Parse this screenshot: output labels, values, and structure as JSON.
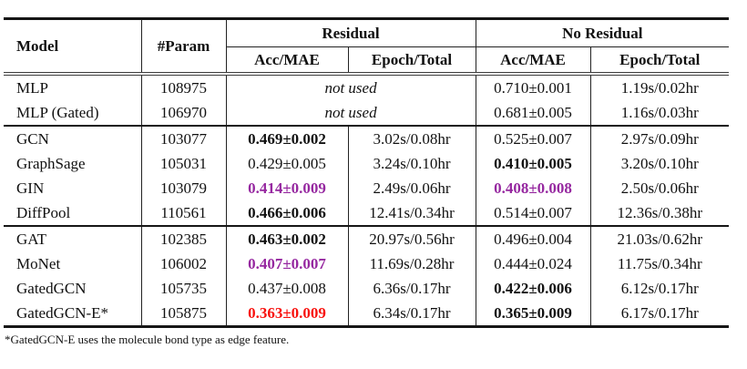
{
  "colors": {
    "best_score": "#f8100c",
    "second_best_score": "#9628a0",
    "rule": "#161616",
    "text": "#111111"
  },
  "table": {
    "headers": {
      "model": "Model",
      "param": "#Param",
      "residual": "Residual",
      "no_residual": "No Residual",
      "acc_mae": "Acc/MAE",
      "epoch_total": "Epoch/Total"
    },
    "not_used_label": "not used",
    "rows": [
      {
        "model": "MLP",
        "param": "108975",
        "not_used": "not used",
        "nr_acc": "0.710±0.001",
        "nr_epoch": "1.19s/0.02hr"
      },
      {
        "model": "MLP (Gated)",
        "param": "106970",
        "not_used": "not used",
        "nr_acc": "0.681±0.005",
        "nr_epoch": "1.16s/0.03hr"
      },
      {
        "model": "GCN",
        "param": "103077",
        "r_acc": "0.469±0.002",
        "r_epoch": "3.02s/0.08hr",
        "nr_acc": "0.525±0.007",
        "nr_epoch": "2.97s/0.09hr"
      },
      {
        "model": "GraphSage",
        "param": "105031",
        "r_acc": "0.429±0.005",
        "r_epoch": "3.24s/0.10hr",
        "nr_acc": "0.410±0.005",
        "nr_epoch": "3.20s/0.10hr"
      },
      {
        "model": "GIN",
        "param": "103079",
        "r_acc": "0.414±0.009",
        "r_epoch": "2.49s/0.06hr",
        "nr_acc": "0.408±0.008",
        "nr_epoch": "2.50s/0.06hr"
      },
      {
        "model": "DiffPool",
        "param": "110561",
        "r_acc": "0.466±0.006",
        "r_epoch": "12.41s/0.34hr",
        "nr_acc": "0.514±0.007",
        "nr_epoch": "12.36s/0.38hr"
      },
      {
        "model": "GAT",
        "param": "102385",
        "r_acc": "0.463±0.002",
        "r_epoch": "20.97s/0.56hr",
        "nr_acc": "0.496±0.004",
        "nr_epoch": "21.03s/0.62hr"
      },
      {
        "model": "MoNet",
        "param": "106002",
        "r_acc": "0.407±0.007",
        "r_epoch": "11.69s/0.28hr",
        "nr_acc": "0.444±0.024",
        "nr_epoch": "11.75s/0.34hr"
      },
      {
        "model": "GatedGCN",
        "param": "105735",
        "r_acc": "0.437±0.008",
        "r_epoch": "6.36s/0.17hr",
        "nr_acc": "0.422±0.006",
        "nr_epoch": "6.12s/0.17hr"
      },
      {
        "model": "GatedGCN-E*",
        "param": "105875",
        "r_acc": "0.363±0.009",
        "r_epoch": "6.34s/0.17hr",
        "nr_acc": "0.365±0.009",
        "nr_epoch": "6.17s/0.17hr"
      }
    ]
  },
  "footnote": "*GatedGCN-E uses the molecule bond type as edge feature."
}
